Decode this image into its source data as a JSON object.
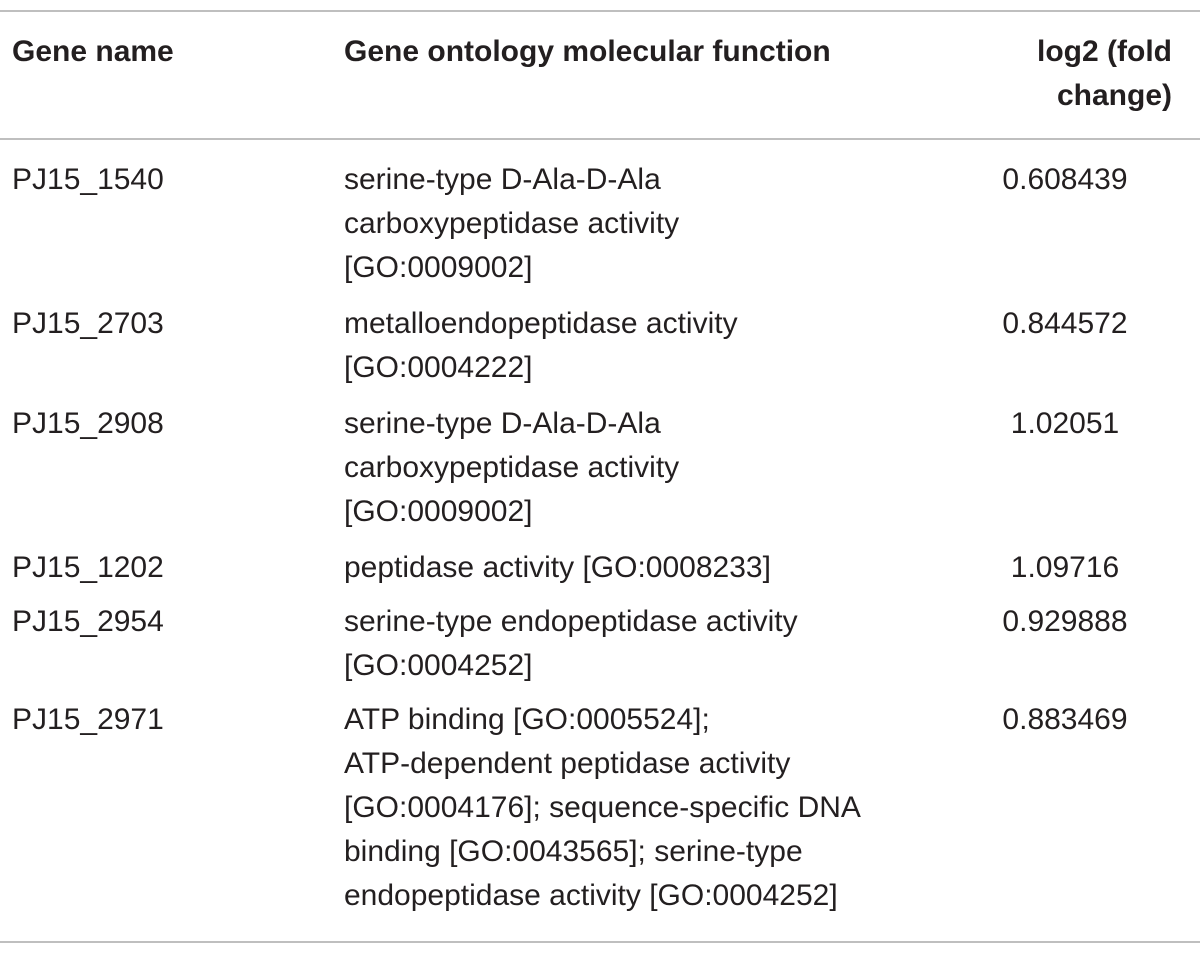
{
  "table": {
    "headers": {
      "gene_name": "Gene name",
      "go_function": "Gene ontology molecular function",
      "fold_change": "log2 (fold\nchange)"
    },
    "rows": [
      {
        "gene": "PJ15_1540",
        "go": "serine-type D-Ala-D-Ala\ncarboxypeptidase activity\n[GO:0009002]",
        "fc": "0.608439"
      },
      {
        "gene": "PJ15_2703",
        "go": "metalloendopeptidase activity\n[GO:0004222]",
        "fc": "0.844572"
      },
      {
        "gene": "PJ15_2908",
        "go": "serine-type D-Ala-D-Ala\ncarboxypeptidase activity\n[GO:0009002]",
        "fc": "1.02051"
      },
      {
        "gene": "PJ15_1202",
        "go": "peptidase activity [GO:0008233]",
        "fc": "1.09716"
      },
      {
        "gene": "PJ15_2954",
        "go": "serine-type endopeptidase activity\n[GO:0004252]",
        "fc": "0.929888"
      },
      {
        "gene": "PJ15_2971",
        "go": "ATP binding [GO:0005524];\nATP-dependent peptidase activity\n[GO:0004176]; sequence-specific DNA\nbinding [GO:0043565]; serine-type\nendopeptidase activity [GO:0004252]",
        "fc": "0.883469"
      }
    ]
  }
}
